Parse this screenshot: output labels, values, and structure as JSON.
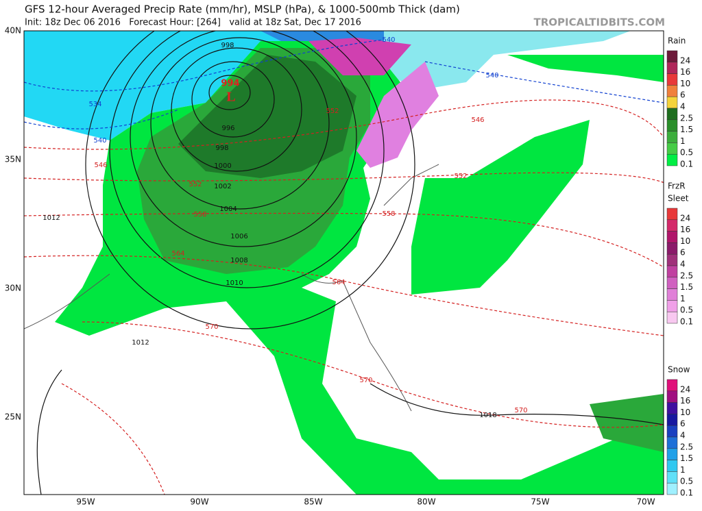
{
  "header": {
    "title": "GFS 12-hour Averaged Precip Rate (mm/hr), MSLP (hPa), & 1000-500mb Thick (dam)",
    "subtitle": "Init: 18z Dec 06 2016   Forecast Hour: [264]   valid at 18z Sat, Dec 17 2016",
    "site": "TROPICALTIDBITS.COM"
  },
  "map": {
    "lat_labels": [
      "40N",
      "35N",
      "30N",
      "25N"
    ],
    "lon_labels": [
      "95W",
      "90W",
      "85W",
      "80W",
      "75W",
      "70W"
    ],
    "low_center": {
      "pressure": "994",
      "symbol": "L"
    },
    "isobar_labels": [
      "998",
      "996",
      "998",
      "1000",
      "1002",
      "1004",
      "1006",
      "1008",
      "1010",
      "1012",
      "1012",
      "1018"
    ],
    "thickness_labels": [
      "540",
      "534",
      "540",
      "540",
      "546",
      "546",
      "552",
      "552",
      "552",
      "558",
      "558",
      "564",
      "564",
      "570",
      "570",
      "570"
    ]
  },
  "legend": [
    {
      "title": [
        "Rain"
      ],
      "labels": [
        "24",
        "16",
        "10",
        "6",
        "4",
        "2.5",
        "1.5",
        "1",
        "0.5",
        "0.1"
      ],
      "colors": [
        "#6d1a3a",
        "#b0275a",
        "#e8393a",
        "#f0803c",
        "#f5d33a",
        "#1e6e1e",
        "#2a8f2a",
        "#3cae3c",
        "#46cc46",
        "#00ee44"
      ]
    },
    {
      "title": [
        "FrzR",
        "Sleet"
      ],
      "labels": [
        "24",
        "16",
        "10",
        "6",
        "4",
        "2.5",
        "1.5",
        "1",
        "0.5",
        "0.1"
      ],
      "colors": [
        "#e8393a",
        "#d4296a",
        "#b0156a",
        "#8b1a6a",
        "#a0307a",
        "#c040a0",
        "#d060c0",
        "#e080d8",
        "#f0a0e8",
        "#f8c8f0"
      ]
    },
    {
      "title": [
        "Snow"
      ],
      "labels": [
        "24",
        "16",
        "10",
        "6",
        "4",
        "2.5",
        "1.5",
        "1",
        "0.5",
        "0.1"
      ],
      "colors": [
        "#e0107a",
        "#a01080",
        "#4010a0",
        "#1818a0",
        "#1a40c0",
        "#1e70d8",
        "#20a0e8",
        "#30c8f0",
        "#60e0f8",
        "#a0f0ff"
      ]
    }
  ]
}
